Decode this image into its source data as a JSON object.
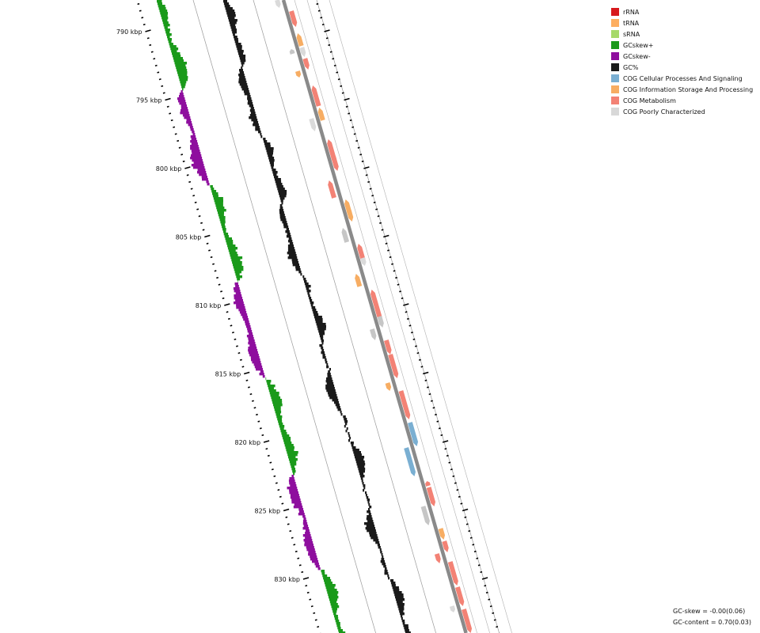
{
  "map": {
    "coordinate_labels": [
      "790 kbp",
      "795 kbp",
      "800 kbp",
      "805 kbp",
      "810 kbp",
      "815 kbp",
      "820 kbp",
      "825 kbp",
      "830 kbp"
    ],
    "label_positions_kbp": [
      790,
      795,
      800,
      805,
      810,
      815,
      820,
      825,
      830
    ],
    "minor_tick_step_kbp": 0.5,
    "colors": {
      "gc_skew_plus": "#1a9a1a",
      "gc_skew_minus": "#8e0e9e",
      "gc_content": "#1a1a1a",
      "backbone": "#8a8a8a",
      "cog_cellular": "#7aafd2",
      "cog_information": "#f7ad63",
      "cog_metabolism": "#f38275",
      "cog_poor": "#c6c6c6",
      "cog_poor_light": "#dadada"
    }
  },
  "legend": {
    "items": [
      {
        "label": "rRNA",
        "color": "#d7191c"
      },
      {
        "label": "tRNA",
        "color": "#fdae61"
      },
      {
        "label": "sRNA",
        "color": "#a6d96a"
      },
      {
        "label": "GCskew+",
        "color": "#1a9a1a"
      },
      {
        "label": "GCskew-",
        "color": "#8e0e9e"
      },
      {
        "label": "GC%",
        "color": "#1a1a1a"
      },
      {
        "label": "COG Cellular Processes And Signaling",
        "color": "#7aafd2"
      },
      {
        "label": "COG Information Storage And Processing",
        "color": "#f7ad63"
      },
      {
        "label": "COG Metabolism",
        "color": "#f38275"
      },
      {
        "label": "COG Poorly Characterized",
        "color": "#d8d8d8"
      }
    ]
  },
  "stats": {
    "gc_skew": "GC-skew = -0.00(0.06)",
    "gc_content": "GC-content = 0.70(0.03)"
  }
}
